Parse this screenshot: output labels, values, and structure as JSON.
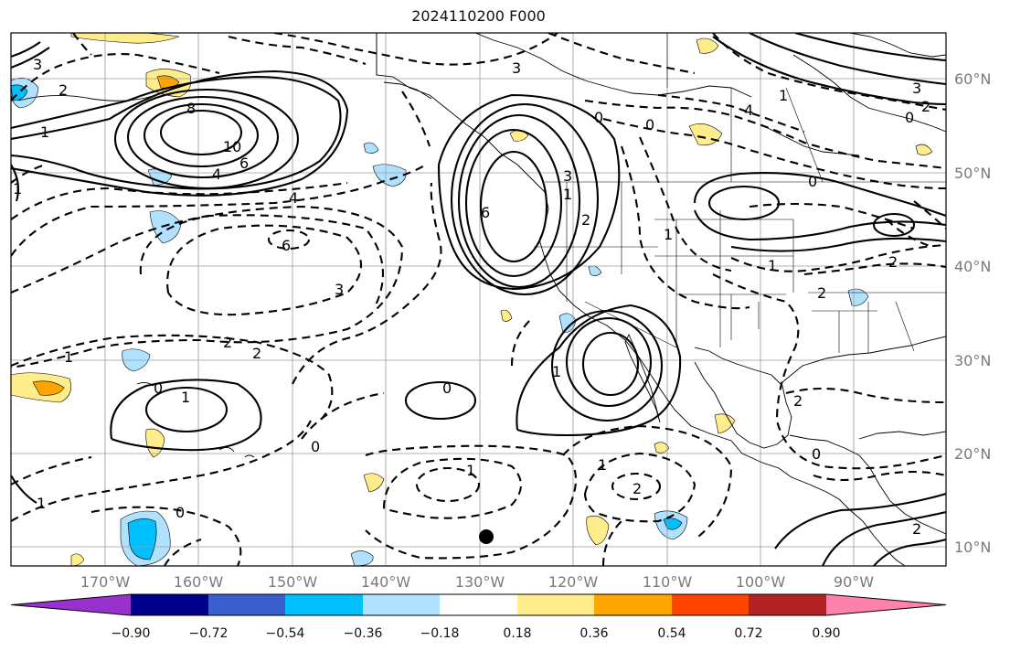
{
  "title": "2024110200 F000",
  "lat_labels": [
    "60°N",
    "50°N",
    "40°N",
    "30°N",
    "20°N",
    "10°N"
  ],
  "lon_labels": [
    "170°W",
    "160°W",
    "150°W",
    "140°W",
    "130°W",
    "120°W",
    "110°W",
    "100°W",
    "90°W"
  ],
  "colorbar": {
    "ticks": [
      "−0.90",
      "−0.72",
      "−0.54",
      "−0.36",
      "−0.18",
      "0.18",
      "0.36",
      "0.54",
      "0.72",
      "0.90"
    ],
    "colors": [
      "#9932CC",
      "#00008B",
      "#3A5FCD",
      "#00BFFF",
      "#B0E2FF",
      "#FFFFFF",
      "#FFEC8B",
      "#FFA500",
      "#FF4500",
      "#B22222",
      "#FF82AB"
    ]
  },
  "contour_labels": {
    "l1": "3",
    "l2": "2",
    "l3": "1",
    "l4": "8",
    "l5": "10",
    "l6": "6",
    "l7": "4",
    "l8": "4",
    "l9": "6",
    "l10": "3",
    "l11": "1",
    "l12": "2",
    "l13": "2",
    "l14": "0",
    "l15": "1",
    "l16": "0",
    "l17": "6",
    "l18": "0",
    "l19": "3",
    "l20": "1",
    "l21": "2",
    "l22": "1",
    "l23": "1",
    "l24": "0",
    "l25": "4",
    "l26": "0",
    "l27": "3",
    "l28": "2",
    "l29": "1",
    "l30": "0",
    "l31": "1",
    "l32": "2",
    "l33": "2",
    "l34": "0",
    "l35": "2",
    "l36": "1",
    "l37": "3",
    "l38": "1",
    "l39": "2",
    "l40": "0",
    "l41": "1",
    "l42": "0",
    "l43": "1",
    "l44": "2"
  }
}
